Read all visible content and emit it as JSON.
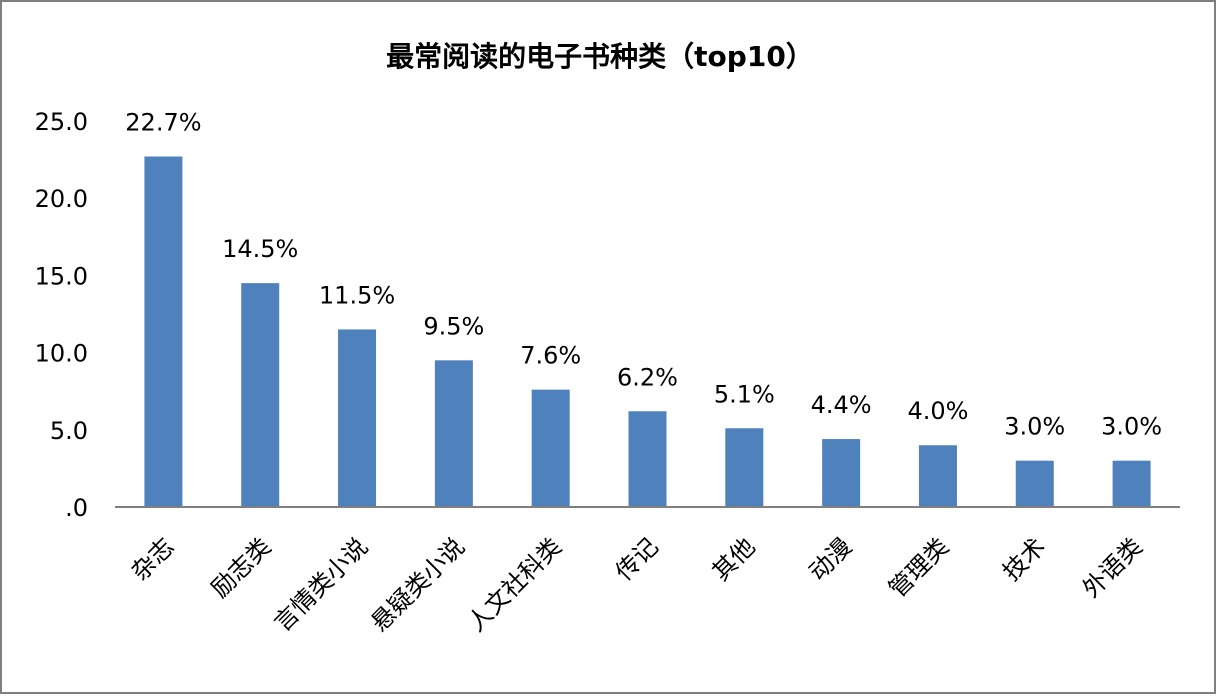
{
  "chart_data": {
    "type": "bar",
    "title": "最常阅读的电子书种类（top10）",
    "categories": [
      "杂志",
      "励志类",
      "言情类小说",
      "悬疑类小说",
      "人文社科类",
      "传记",
      "其他",
      "动漫",
      "管理类",
      "技术",
      "外语类"
    ],
    "values": [
      22.7,
      14.5,
      11.5,
      9.5,
      7.6,
      6.2,
      5.1,
      4.4,
      4.0,
      3.0,
      3.0
    ],
    "data_labels": [
      "22.7%",
      "14.5%",
      "11.5%",
      "9.5%",
      "7.6%",
      "6.2%",
      "5.1%",
      "4.4%",
      "4.0%",
      "3.0%",
      "3.0%"
    ],
    "y_ticks": [
      ".0",
      "5.0",
      "10.0",
      "15.0",
      "20.0",
      "25.0"
    ],
    "y_tick_values": [
      0,
      5,
      10,
      15,
      20,
      25
    ],
    "ylim": [
      0,
      25
    ],
    "xlabel": "",
    "ylabel": "",
    "grid": false,
    "legend": "none",
    "bar_color": "#4F81BD"
  }
}
